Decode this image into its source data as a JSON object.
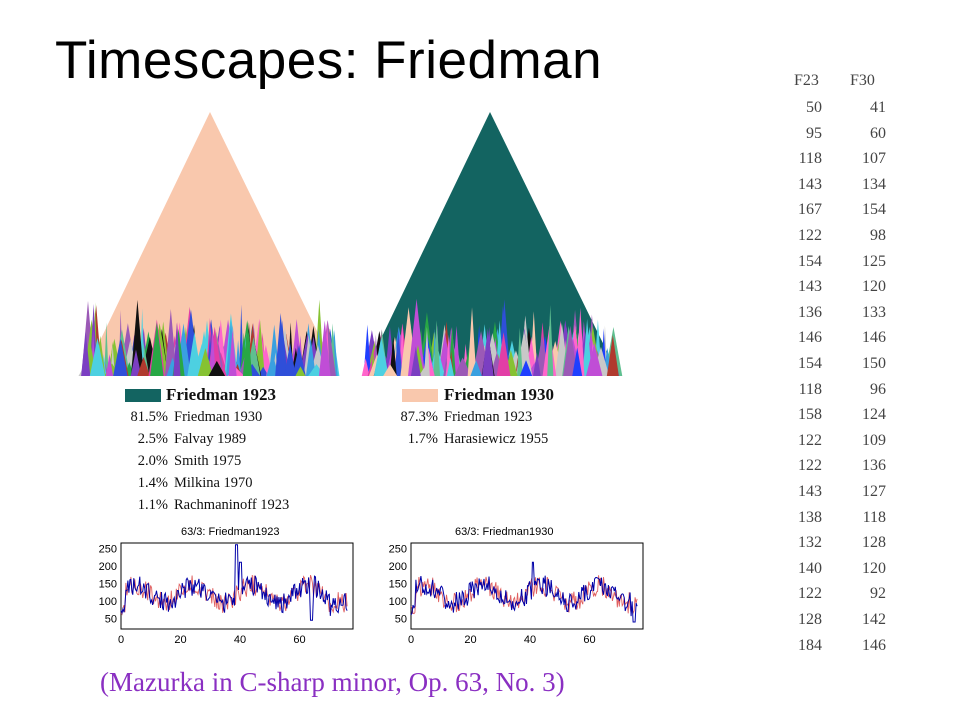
{
  "slide": {
    "title": "Timescapes: Friedman",
    "caption": "(Mazurka in C-sharp minor, Op. 63, No. 3)"
  },
  "colors": {
    "peach": "#f9c8ad",
    "teal": "#136461",
    "caption": "#8a2fc2",
    "plot_blue": "#0000a8",
    "plot_red": "#e06060"
  },
  "panels": [
    {
      "legend_name": "Friedman 1923",
      "swatch_color": "#136461",
      "matches": [
        {
          "pct": "81.5%",
          "name": "Friedman 1930"
        },
        {
          "pct": "2.5%",
          "name": "Falvay 1989"
        },
        {
          "pct": "2.0%",
          "name": "Smith 1975"
        },
        {
          "pct": "1.4%",
          "name": "Milkina 1970"
        },
        {
          "pct": "1.1%",
          "name": "Rachmaninoff 1923"
        }
      ]
    },
    {
      "legend_name": "Friedman 1930",
      "swatch_color": "#f9c8ad",
      "matches": [
        {
          "pct": "87.3%",
          "name": "Friedman 1923"
        },
        {
          "pct": "1.7%",
          "name": "Harasiewicz 1955"
        }
      ]
    }
  ],
  "plots": [
    {
      "title": "63/3: Friedman1923",
      "yticks": [
        "250",
        "200",
        "150",
        "100",
        "50"
      ],
      "xticks": [
        "0",
        "20",
        "40",
        "60"
      ]
    },
    {
      "title": "63/3: Friedman1930",
      "yticks": [
        "250",
        "200",
        "150",
        "100",
        "50"
      ],
      "xticks": [
        "0",
        "20",
        "40",
        "60"
      ]
    }
  ],
  "tempo_table": {
    "headers": [
      "F23",
      "F30"
    ],
    "rows": [
      [
        "50",
        "41"
      ],
      [
        "95",
        "60"
      ],
      [
        "118",
        "107"
      ],
      [
        "143",
        "134"
      ],
      [
        "167",
        "154"
      ],
      [
        "122",
        "98"
      ],
      [
        "154",
        "125"
      ],
      [
        "143",
        "120"
      ],
      [
        "136",
        "133"
      ],
      [
        "146",
        "146"
      ],
      [
        "154",
        "150"
      ],
      [
        "118",
        "96"
      ],
      [
        "158",
        "124"
      ],
      [
        "122",
        "109"
      ],
      [
        "122",
        "136"
      ],
      [
        "143",
        "127"
      ],
      [
        "138",
        "118"
      ],
      [
        "132",
        "128"
      ],
      [
        "140",
        "120"
      ],
      [
        "122",
        "92"
      ],
      [
        "128",
        "142"
      ],
      [
        "184",
        "146"
      ]
    ]
  }
}
